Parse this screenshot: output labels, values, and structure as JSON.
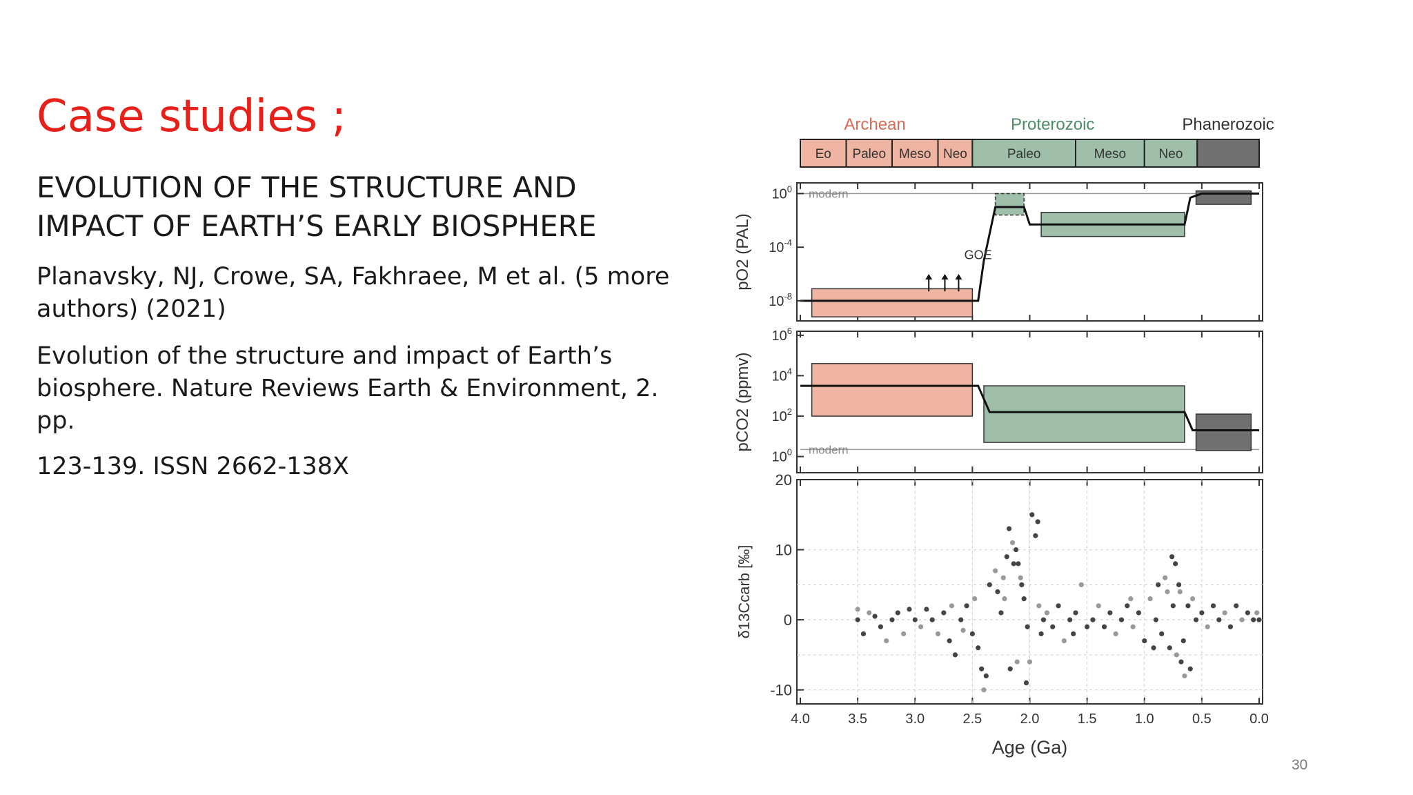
{
  "slide": {
    "title": "Case studies ;",
    "heading": "EVOLUTION OF THE  STRUCTURE AND IMPACT OF EARTH’S EARLY BIOSPHERE",
    "authors": "Planavsky, NJ, Crowe, SA, Fakhraee, M et al. (5 more authors) (2021)",
    "citation": " Evolution of the structure and impact of Earth’s biosphere. Nature Reviews Earth & Environment, 2. pp.",
    "issn": "123-139. ISSN 2662-138X",
    "page_number": "30"
  },
  "chart_data": [
    {
      "type": "table",
      "eons": [
        {
          "label": "Archean",
          "color": "#d96a55"
        },
        {
          "label": "Proterozoic",
          "color": "#4f8c68"
        },
        {
          "label": "Phanerozoic",
          "color": "#333333"
        }
      ],
      "eras": [
        {
          "label": "Eo",
          "from": 4.0,
          "to": 3.6,
          "color": "#f0b4a2"
        },
        {
          "label": "Paleo",
          "from": 3.6,
          "to": 3.2,
          "color": "#f0b4a2"
        },
        {
          "label": "Meso",
          "from": 3.2,
          "to": 2.8,
          "color": "#f0b4a2"
        },
        {
          "label": "Neo",
          "from": 2.8,
          "to": 2.5,
          "color": "#f0b4a2"
        },
        {
          "label": "Paleo",
          "from": 2.5,
          "to": 1.6,
          "color": "#9fbfaa"
        },
        {
          "label": "Meso",
          "from": 1.6,
          "to": 1.0,
          "color": "#9fbfaa"
        },
        {
          "label": "Neo",
          "from": 1.0,
          "to": 0.54,
          "color": "#9fbfaa"
        },
        {
          "label": "",
          "from": 0.54,
          "to": 0.0,
          "color": "#707070"
        }
      ]
    },
    {
      "type": "line",
      "ylabel": "pO2 (PAL)",
      "y_scale": "log",
      "yticks": [
        {
          "value": 0,
          "base": "10",
          "exp": "0"
        },
        {
          "value": -4,
          "base": "10",
          "exp": "-4"
        },
        {
          "value": -8,
          "base": "10",
          "exp": "-8"
        }
      ],
      "ylim": [
        -9.5,
        0.8
      ],
      "xlim": [
        4.0,
        0.0
      ],
      "reference_label": "modern",
      "reference_log": 0,
      "annotation": "GOE",
      "boxes": [
        {
          "from": 3.9,
          "to": 2.5,
          "low": -9.2,
          "high": -7.1,
          "color": "#f0b4a2"
        },
        {
          "from": 2.3,
          "to": 2.05,
          "low": -1.6,
          "high": 0.0,
          "color": "#9fbfaa",
          "dashed": true
        },
        {
          "from": 1.9,
          "to": 0.65,
          "low": -3.2,
          "high": -1.4,
          "color": "#9fbfaa"
        },
        {
          "from": 0.55,
          "to": 0.07,
          "low": -0.8,
          "high": 0.2,
          "color": "#707070"
        }
      ],
      "series": [
        {
          "x": [
            4.0,
            2.45,
            2.4,
            2.3,
            2.05,
            2.0,
            1.9,
            0.65,
            0.6,
            0.5,
            0.0
          ],
          "y": [
            -8.0,
            -8.0,
            -5.0,
            -1.0,
            -1.0,
            -2.3,
            -2.3,
            -2.3,
            -0.3,
            0.0,
            0.0
          ]
        }
      ],
      "arrows_x": [
        2.88,
        2.74,
        2.62
      ]
    },
    {
      "type": "line",
      "ylabel": "pCO2 (ppmv)",
      "y_scale": "log",
      "yticks": [
        {
          "value": 6,
          "base": "10",
          "exp": "6"
        },
        {
          "value": 4,
          "base": "10",
          "exp": "4"
        },
        {
          "value": 2,
          "base": "10",
          "exp": "2"
        },
        {
          "value": 0,
          "base": "10",
          "exp": "0"
        }
      ],
      "ylim": [
        -0.8,
        6.2
      ],
      "xlim": [
        4.0,
        0.0
      ],
      "reference_label": "modern",
      "reference_log": 0.35,
      "boxes": [
        {
          "from": 3.9,
          "to": 2.5,
          "low": 2.0,
          "high": 4.6,
          "color": "#f0b4a2"
        },
        {
          "from": 2.4,
          "to": 0.65,
          "low": 0.7,
          "high": 3.5,
          "color": "#9fbfaa"
        },
        {
          "from": 0.55,
          "to": 0.07,
          "low": 0.3,
          "high": 2.1,
          "color": "#707070"
        }
      ],
      "series": [
        {
          "x": [
            4.0,
            2.45,
            2.35,
            0.65,
            0.58,
            0.0
          ],
          "y": [
            3.5,
            3.5,
            2.2,
            2.2,
            1.3,
            1.3
          ]
        }
      ]
    },
    {
      "type": "scatter",
      "ylabel": "δ13Ccarb [‰]",
      "yticks": [
        20,
        10,
        0,
        -10
      ],
      "ylim": [
        -12,
        20
      ],
      "xlabel": "Age (Ga)",
      "xticks": [
        "4.0",
        "3.5",
        "3.0",
        "2.5",
        "2.0",
        "1.5",
        "1.0",
        "0.5",
        "0.0"
      ],
      "xlim": [
        4.0,
        0.0
      ],
      "grid": true,
      "points": [
        [
          3.5,
          1.5
        ],
        [
          3.5,
          0
        ],
        [
          3.45,
          -2
        ],
        [
          3.4,
          1
        ],
        [
          3.35,
          0.5
        ],
        [
          3.3,
          -1
        ],
        [
          3.25,
          -3
        ],
        [
          3.2,
          0
        ],
        [
          3.15,
          1
        ],
        [
          3.1,
          -2
        ],
        [
          3.05,
          1.5
        ],
        [
          3.0,
          0
        ],
        [
          2.95,
          -1
        ],
        [
          2.9,
          1.5
        ],
        [
          2.85,
          0
        ],
        [
          2.8,
          -2
        ],
        [
          2.75,
          1
        ],
        [
          2.7,
          -3
        ],
        [
          2.68,
          2
        ],
        [
          2.65,
          -5
        ],
        [
          2.6,
          0
        ],
        [
          2.58,
          -1.5
        ],
        [
          2.55,
          2
        ],
        [
          2.5,
          -2
        ],
        [
          2.48,
          3
        ],
        [
          2.45,
          -4
        ],
        [
          2.42,
          -7
        ],
        [
          2.4,
          -10
        ],
        [
          2.38,
          -8
        ],
        [
          2.35,
          5
        ],
        [
          2.3,
          7
        ],
        [
          2.28,
          4
        ],
        [
          2.25,
          1
        ],
        [
          2.22,
          3
        ],
        [
          2.2,
          9
        ],
        [
          2.18,
          13
        ],
        [
          2.15,
          11
        ],
        [
          2.12,
          10
        ],
        [
          2.1,
          8
        ],
        [
          2.08,
          6
        ],
        [
          2.05,
          3
        ],
        [
          2.02,
          -1
        ],
        [
          2.0,
          -6
        ],
        [
          1.98,
          15
        ],
        [
          1.95,
          12
        ],
        [
          1.92,
          2
        ],
        [
          1.9,
          -2
        ],
        [
          1.88,
          0
        ],
        [
          1.85,
          1
        ],
        [
          1.8,
          -1
        ],
        [
          1.75,
          2
        ],
        [
          1.7,
          -3
        ],
        [
          1.65,
          0
        ],
        [
          1.6,
          1
        ],
        [
          1.55,
          5
        ],
        [
          1.5,
          -1
        ],
        [
          1.45,
          0
        ],
        [
          1.4,
          2
        ],
        [
          1.35,
          -1
        ],
        [
          1.3,
          1
        ],
        [
          1.25,
          -2
        ],
        [
          1.2,
          0
        ],
        [
          1.15,
          2
        ],
        [
          1.1,
          -1
        ],
        [
          1.05,
          1
        ],
        [
          1.0,
          -3
        ],
        [
          0.95,
          3
        ],
        [
          0.9,
          0
        ],
        [
          0.85,
          -2
        ],
        [
          0.8,
          4
        ],
        [
          0.78,
          -4
        ],
        [
          0.75,
          2
        ],
        [
          0.72,
          -5
        ],
        [
          0.7,
          5
        ],
        [
          0.68,
          -6
        ],
        [
          0.65,
          -8
        ],
        [
          0.62,
          2
        ],
        [
          0.6,
          -7
        ],
        [
          0.58,
          3
        ],
        [
          0.55,
          0
        ],
        [
          0.5,
          1
        ],
        [
          0.45,
          -1
        ],
        [
          0.4,
          2
        ],
        [
          0.35,
          0
        ],
        [
          0.3,
          1
        ],
        [
          0.25,
          -1
        ],
        [
          0.2,
          2
        ],
        [
          0.15,
          0
        ],
        [
          0.1,
          1
        ],
        [
          0.05,
          0
        ],
        [
          0.02,
          1
        ],
        [
          0.0,
          0
        ],
        [
          2.17,
          -7
        ],
        [
          2.11,
          -6
        ],
        [
          2.03,
          -9
        ],
        [
          1.93,
          14
        ],
        [
          2.23,
          6
        ],
        [
          2.14,
          8
        ],
        [
          2.07,
          5
        ],
        [
          0.82,
          6
        ],
        [
          0.76,
          9
        ],
        [
          0.73,
          8
        ],
        [
          0.69,
          4
        ],
        [
          0.66,
          -3
        ],
        [
          1.62,
          -2
        ],
        [
          1.12,
          3
        ],
        [
          0.92,
          -4
        ],
        [
          0.88,
          5
        ]
      ]
    }
  ]
}
